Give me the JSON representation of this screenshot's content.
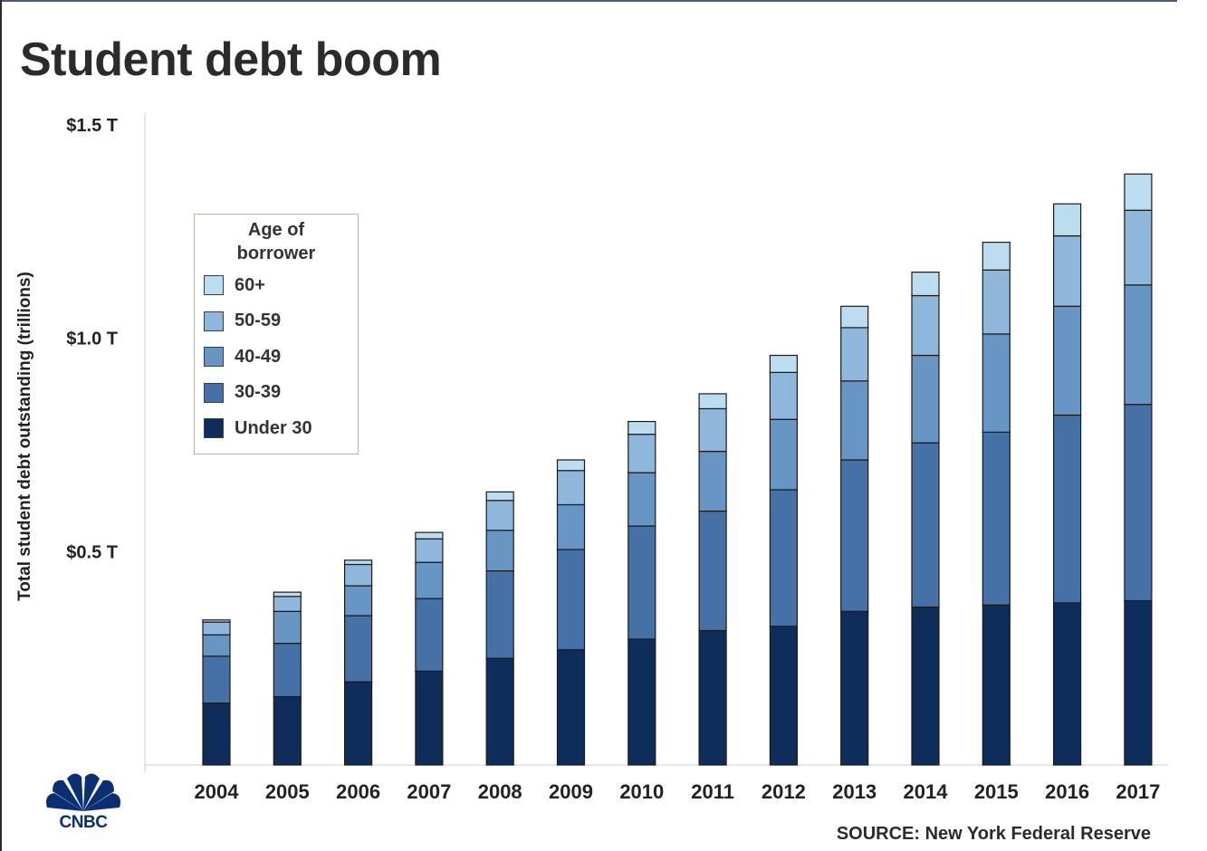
{
  "chart_data": {
    "type": "bar",
    "stacked": true,
    "title": "Student debt boom",
    "ylabel": "Total student debt outstanding (trillions)",
    "xlabel": "",
    "ylim": [
      0,
      1.5
    ],
    "yticks": [
      {
        "value": 0.5,
        "label": "$0.5 T"
      },
      {
        "value": 1.0,
        "label": "$1.0 T"
      },
      {
        "value": 1.5,
        "label": "$1.5 T"
      }
    ],
    "categories": [
      "2004",
      "2005",
      "2006",
      "2007",
      "2008",
      "2009",
      "2010",
      "2011",
      "2012",
      "2013",
      "2014",
      "2015",
      "2016",
      "2017"
    ],
    "series": [
      {
        "name": "Under 30",
        "color": "#0f2d5a",
        "values": [
          0.145,
          0.16,
          0.195,
          0.22,
          0.25,
          0.27,
          0.295,
          0.315,
          0.325,
          0.36,
          0.37,
          0.375,
          0.38,
          0.385
        ]
      },
      {
        "name": "30-39",
        "color": "#4671a6",
        "values": [
          0.11,
          0.125,
          0.155,
          0.17,
          0.205,
          0.235,
          0.265,
          0.28,
          0.32,
          0.355,
          0.385,
          0.405,
          0.44,
          0.46
        ]
      },
      {
        "name": "40-49",
        "color": "#6896c4",
        "values": [
          0.05,
          0.075,
          0.07,
          0.085,
          0.095,
          0.105,
          0.125,
          0.14,
          0.165,
          0.185,
          0.205,
          0.23,
          0.255,
          0.28
        ]
      },
      {
        "name": "50-59",
        "color": "#8fb7dc",
        "values": [
          0.03,
          0.035,
          0.05,
          0.055,
          0.07,
          0.08,
          0.09,
          0.1,
          0.11,
          0.125,
          0.14,
          0.15,
          0.165,
          0.175
        ]
      },
      {
        "name": "60+",
        "color": "#bcdcf0",
        "values": [
          0.005,
          0.01,
          0.01,
          0.015,
          0.02,
          0.025,
          0.03,
          0.035,
          0.04,
          0.05,
          0.055,
          0.065,
          0.075,
          0.085
        ]
      }
    ],
    "legend": {
      "title": "Age of\nborrower",
      "placement": "top-left",
      "order": [
        "60+",
        "50-59",
        "40-49",
        "30-39",
        "Under 30"
      ]
    },
    "grid": false,
    "source": "SOURCE: New York Federal Reserve"
  },
  "brand": {
    "logo_text": "CNBC",
    "logo_colors": [
      "#0b2f73"
    ]
  }
}
